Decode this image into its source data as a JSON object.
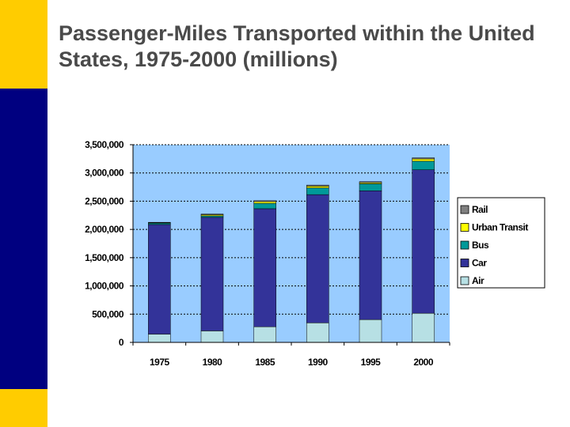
{
  "slide": {
    "title": "Passenger-Miles Transported within the United States, 1975-2000 (millions)"
  },
  "colors": {
    "accent_yellow": "#FFCC00",
    "accent_navy": "#000080",
    "title_text": "#4a4a4a",
    "plot_background": "#99CCFF"
  },
  "chart_data": {
    "type": "bar",
    "stacked": true,
    "categories": [
      "1975",
      "1980",
      "1985",
      "1990",
      "1995",
      "2000"
    ],
    "series": [
      {
        "name": "Air",
        "color": "#B7E0E4",
        "values": [
          147000,
          204000,
          277000,
          346000,
          404000,
          516000
        ]
      },
      {
        "name": "Car",
        "color": "#333399",
        "values": [
          1940000,
          2010000,
          2090000,
          2270000,
          2280000,
          2540000
        ]
      },
      {
        "name": "Bus",
        "color": "#009999",
        "values": [
          25000,
          27000,
          95000,
          120000,
          124000,
          152000
        ]
      },
      {
        "name": "Urban Transit",
        "color": "#FFFF00",
        "values": [
          8000,
          20000,
          30000,
          30000,
          20000,
          40000
        ]
      },
      {
        "name": "Rail",
        "color": "#808080",
        "values": [
          6000,
          11000,
          17000,
          19000,
          18000,
          20000
        ]
      }
    ],
    "y_ticks": [
      "0",
      "500,000",
      "1,000,000",
      "1,500,000",
      "2,000,000",
      "2,500,000",
      "3,000,000",
      "3,500,000"
    ],
    "ylim": [
      0,
      3500000
    ],
    "legend_order": [
      "Rail",
      "Urban Transit",
      "Bus",
      "Car",
      "Air"
    ],
    "legend_position": "right",
    "grid": true
  }
}
